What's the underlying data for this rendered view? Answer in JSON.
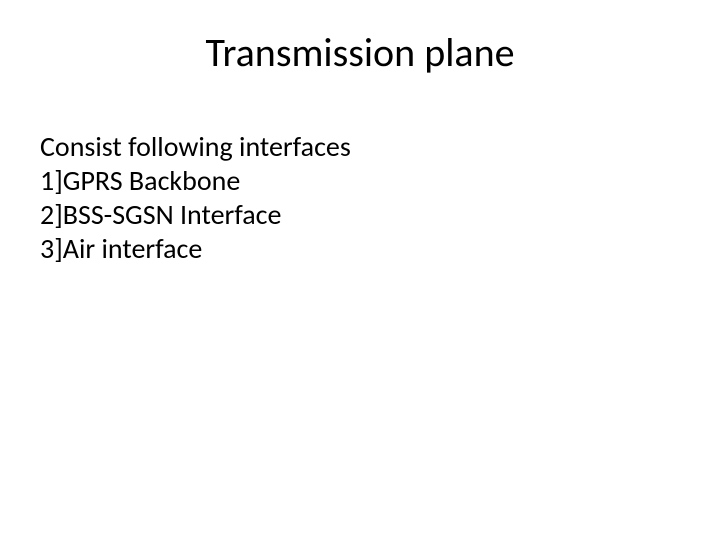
{
  "slide": {
    "title": "Transmission plane",
    "intro": "Consist following interfaces",
    "items": {
      "line1": "1]GPRS Backbone",
      "line2": "2]BSS-SGSN Interface",
      "line3": "3]Air interface"
    }
  },
  "style": {
    "background_color": "#ffffff",
    "text_color": "#000000",
    "title_fontsize": 40,
    "body_fontsize": 28,
    "font_family": "Calibri"
  }
}
